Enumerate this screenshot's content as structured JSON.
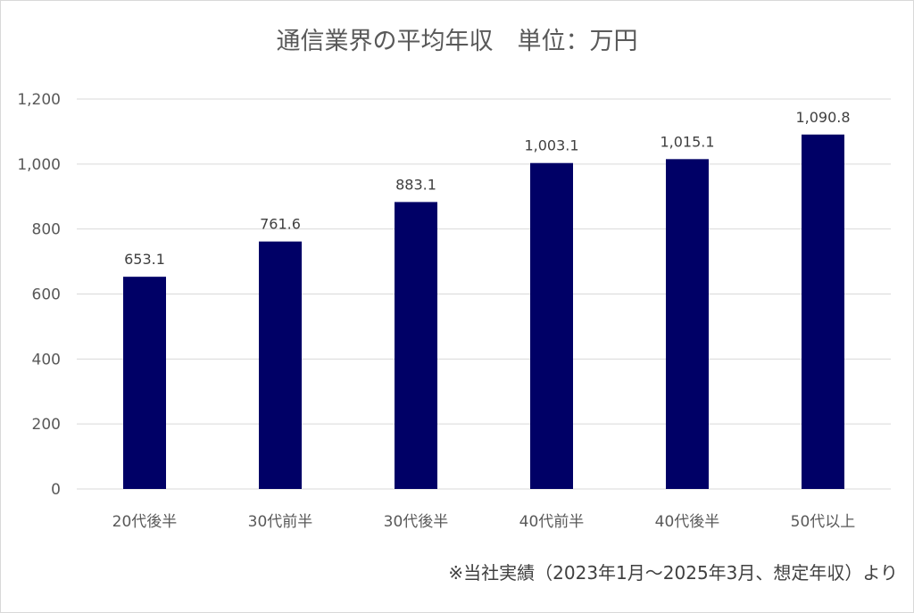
{
  "chart_data": {
    "type": "bar",
    "title": "通信業界の平均年収　単位：万円",
    "categories": [
      "20代後半",
      "30代前半",
      "30代後半",
      "40代前半",
      "40代後半",
      "50代以上"
    ],
    "values": [
      653.1,
      761.6,
      883.1,
      1003.1,
      1015.1,
      1090.8
    ],
    "data_labels": [
      "653.1",
      "761.6",
      "883.1",
      "1,003.1",
      "1,015.1",
      "1,090.8"
    ],
    "ylim": [
      0,
      1200
    ],
    "yticks": [
      0,
      200,
      400,
      600,
      800,
      1000,
      1200
    ],
    "ytick_labels": [
      "0",
      "200",
      "400",
      "600",
      "800",
      "1,000",
      "1,200"
    ],
    "grid": true,
    "bar_color": "#000066",
    "grid_color": "#d9d9d9",
    "xlabel": "",
    "ylabel": ""
  },
  "footnote": "※当社実績（2023年1月～2025年3月、想定年収）より"
}
